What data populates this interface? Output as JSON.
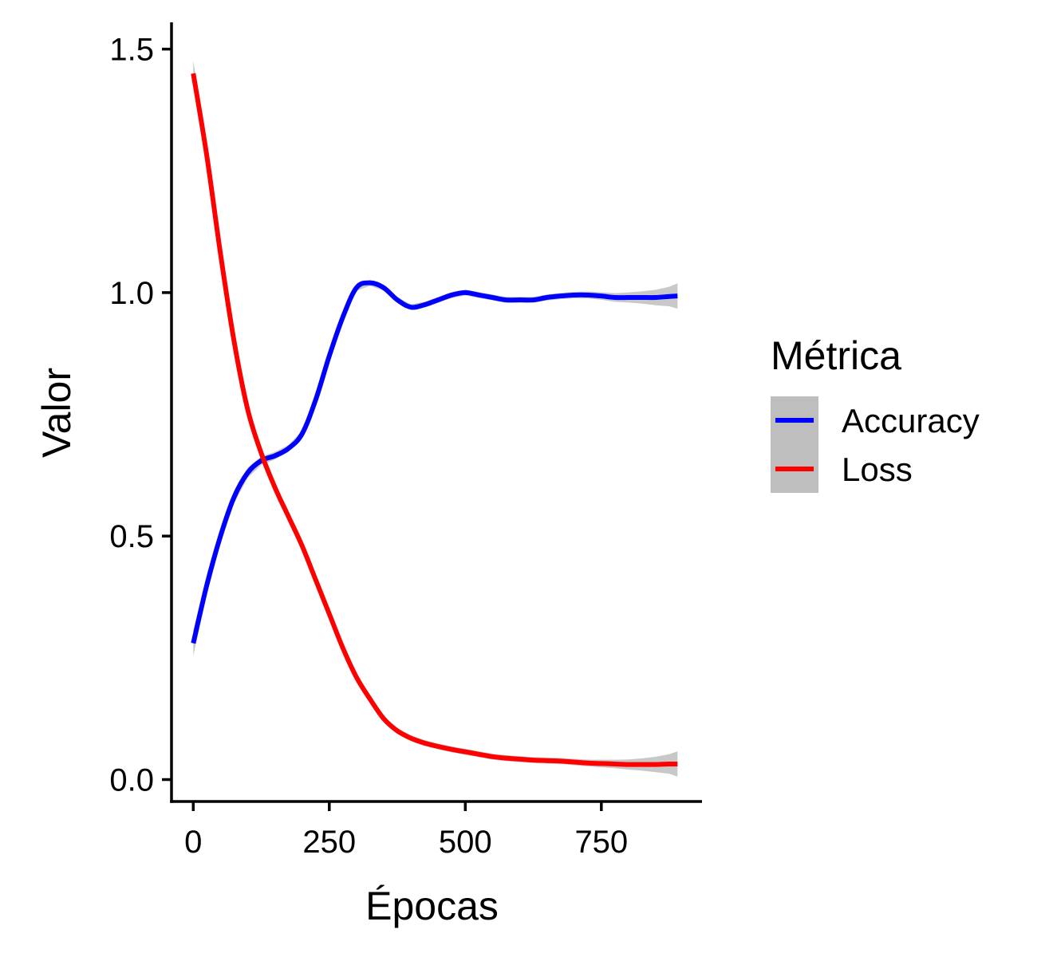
{
  "chart_data": {
    "type": "line",
    "xlabel": "Épocas",
    "ylabel": "Valor",
    "xlim": [
      -40,
      935
    ],
    "ylim": [
      -0.045,
      1.555
    ],
    "xticks": [
      0,
      250,
      500,
      750
    ],
    "yticks": [
      0.0,
      0.5,
      1.0,
      1.5
    ],
    "xtick_labels": [
      "0",
      "250",
      "500",
      "750"
    ],
    "ytick_labels": [
      "0.0",
      "0.5",
      "1.0",
      "1.5"
    ],
    "grid": false,
    "legend": {
      "title": "Métrica",
      "position": "right"
    },
    "confidence_band_color": "#bebebe",
    "x": [
      0,
      25,
      50,
      75,
      100,
      125,
      150,
      175,
      200,
      225,
      250,
      275,
      300,
      325,
      350,
      375,
      400,
      425,
      450,
      475,
      500,
      525,
      550,
      575,
      600,
      625,
      650,
      675,
      700,
      725,
      750,
      775,
      800,
      825,
      850,
      875,
      890
    ],
    "series": [
      {
        "name": "Accuracy",
        "color": "#0000ff",
        "values": [
          0.28,
          0.4,
          0.5,
          0.58,
          0.63,
          0.655,
          0.665,
          0.68,
          0.71,
          0.78,
          0.87,
          0.95,
          1.01,
          1.02,
          1.01,
          0.985,
          0.97,
          0.975,
          0.985,
          0.995,
          1.0,
          0.995,
          0.99,
          0.985,
          0.985,
          0.985,
          0.99,
          0.993,
          0.995,
          0.995,
          0.993,
          0.99,
          0.99,
          0.99,
          0.99,
          0.992,
          0.993
        ]
      },
      {
        "name": "Loss",
        "color": "#ff0000",
        "values": [
          1.45,
          1.28,
          1.08,
          0.9,
          0.76,
          0.67,
          0.6,
          0.54,
          0.48,
          0.41,
          0.34,
          0.27,
          0.21,
          0.165,
          0.125,
          0.1,
          0.085,
          0.075,
          0.068,
          0.062,
          0.057,
          0.052,
          0.047,
          0.044,
          0.042,
          0.04,
          0.039,
          0.038,
          0.036,
          0.034,
          0.033,
          0.032,
          0.031,
          0.031,
          0.031,
          0.032,
          0.032
        ]
      }
    ]
  }
}
